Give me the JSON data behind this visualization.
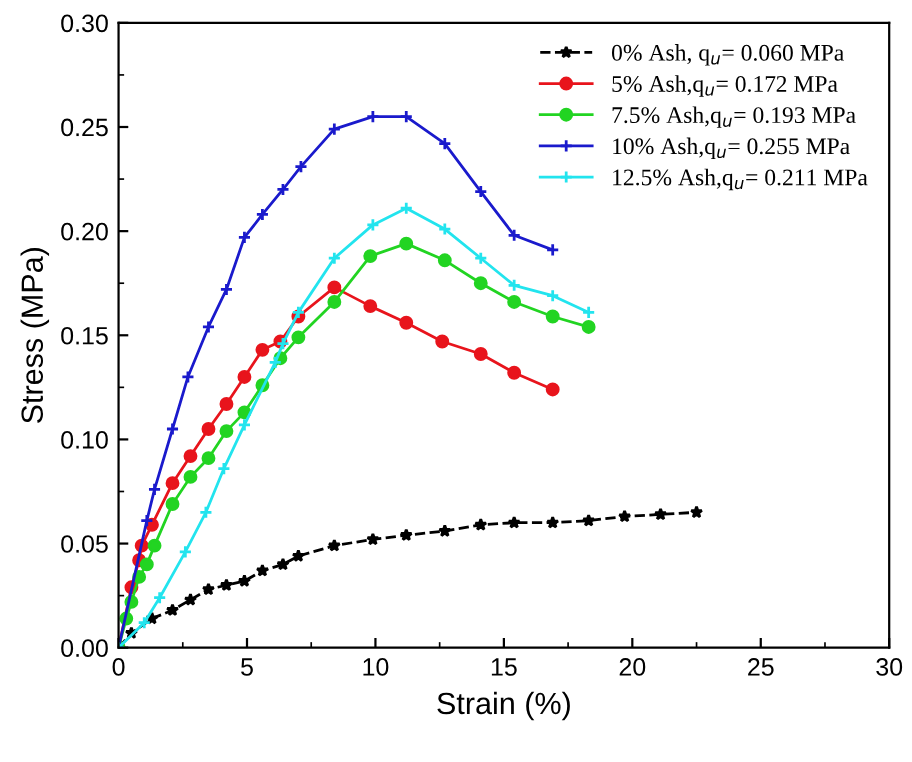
{
  "chart_data": {
    "type": "line",
    "xlabel": "Strain (%)",
    "ylabel": "Stress (MPa)",
    "xlim": [
      0,
      30
    ],
    "ylim": [
      0,
      0.3
    ],
    "xticks": [
      0,
      5,
      10,
      15,
      20,
      25,
      30
    ],
    "yticks": [
      {
        "value": 0,
        "label": "0.00"
      },
      {
        "value": 0.05,
        "label": "0.05"
      },
      {
        "value": 0.1,
        "label": "0.10"
      },
      {
        "value": 0.15,
        "label": "0.15"
      },
      {
        "value": 0.2,
        "label": "0.20"
      },
      {
        "value": 0.25,
        "label": "0.25"
      },
      {
        "value": 0.3,
        "label": "0.30"
      }
    ],
    "grid": false,
    "legend": "top right",
    "series": [
      {
        "name": "0% Ash, q$_{u}$= 0.060 MPa",
        "color": "#000000",
        "marker": "star",
        "line_style": "dashed",
        "x": [
          0,
          0.5,
          1.3,
          2.1,
          2.8,
          3.5,
          4.2,
          4.9,
          5.6,
          6.4,
          7.0,
          8.4,
          9.9,
          11.2,
          12.7,
          14.1,
          15.4,
          16.9,
          18.3,
          19.7,
          21.1,
          22.5
        ],
        "values": [
          0,
          0.007,
          0.014,
          0.018,
          0.023,
          0.028,
          0.03,
          0.032,
          0.037,
          0.04,
          0.044,
          0.049,
          0.052,
          0.054,
          0.056,
          0.059,
          0.06,
          0.06,
          0.061,
          0.063,
          0.064,
          0.065
        ]
      },
      {
        "name": "5% Ash,q$_{u}$= 0.172 MPa",
        "color": "#e8141c",
        "marker": "circle",
        "line_style": "solid",
        "x": [
          0,
          0.5,
          0.8,
          0.9,
          1.3,
          2.1,
          2.8,
          3.5,
          4.2,
          4.9,
          5.6,
          6.3,
          7.0,
          8.4,
          9.8,
          11.2,
          12.6,
          14.1,
          15.4,
          16.9
        ],
        "values": [
          0,
          0.029,
          0.042,
          0.049,
          0.059,
          0.079,
          0.092,
          0.105,
          0.117,
          0.13,
          0.143,
          0.147,
          0.159,
          0.173,
          0.164,
          0.156,
          0.147,
          0.141,
          0.132,
          0.124
        ]
      },
      {
        "name": "7.5% Ash,q$_{u}$= 0.193 MPa",
        "color": "#22d422",
        "marker": "circle",
        "line_style": "solid",
        "x": [
          0,
          0.3,
          0.5,
          0.8,
          1.1,
          1.4,
          2.1,
          2.8,
          3.5,
          4.2,
          4.9,
          5.6,
          6.3,
          7.0,
          8.4,
          9.8,
          11.2,
          12.7,
          14.1,
          15.4,
          16.9,
          18.3
        ],
        "values": [
          0,
          0.014,
          0.022,
          0.034,
          0.04,
          0.049,
          0.069,
          0.082,
          0.091,
          0.104,
          0.113,
          0.126,
          0.139,
          0.149,
          0.166,
          0.188,
          0.194,
          0.186,
          0.175,
          0.166,
          0.159,
          0.154
        ]
      },
      {
        "name": "10% Ash,q$_{u}$= 0.255 MPa",
        "color": "#1a1acc",
        "marker": "cross",
        "line_style": "solid",
        "x": [
          0,
          1.1,
          1.4,
          2.1,
          2.7,
          3.5,
          4.2,
          4.9,
          5.6,
          6.4,
          7.1,
          8.4,
          9.9,
          11.2,
          12.7,
          14.1,
          15.4,
          16.9
        ],
        "values": [
          0,
          0.061,
          0.076,
          0.105,
          0.13,
          0.154,
          0.172,
          0.197,
          0.208,
          0.22,
          0.231,
          0.249,
          0.255,
          0.255,
          0.242,
          0.219,
          0.198,
          0.191
        ]
      },
      {
        "name": "12.5% Ash,q$_{u}$= 0.211 MPa",
        "color": "#22e4ee",
        "marker": "cross",
        "line_style": "solid",
        "x": [
          0,
          1.0,
          1.6,
          2.6,
          3.4,
          4.1,
          4.9,
          6.1,
          6.4,
          7.0,
          8.4,
          9.9,
          11.2,
          12.7,
          14.1,
          15.4,
          16.9,
          18.3
        ],
        "values": [
          0,
          0.012,
          0.024,
          0.046,
          0.065,
          0.086,
          0.107,
          0.137,
          0.146,
          0.161,
          0.187,
          0.203,
          0.211,
          0.201,
          0.187,
          0.174,
          0.169,
          0.161
        ]
      }
    ]
  }
}
